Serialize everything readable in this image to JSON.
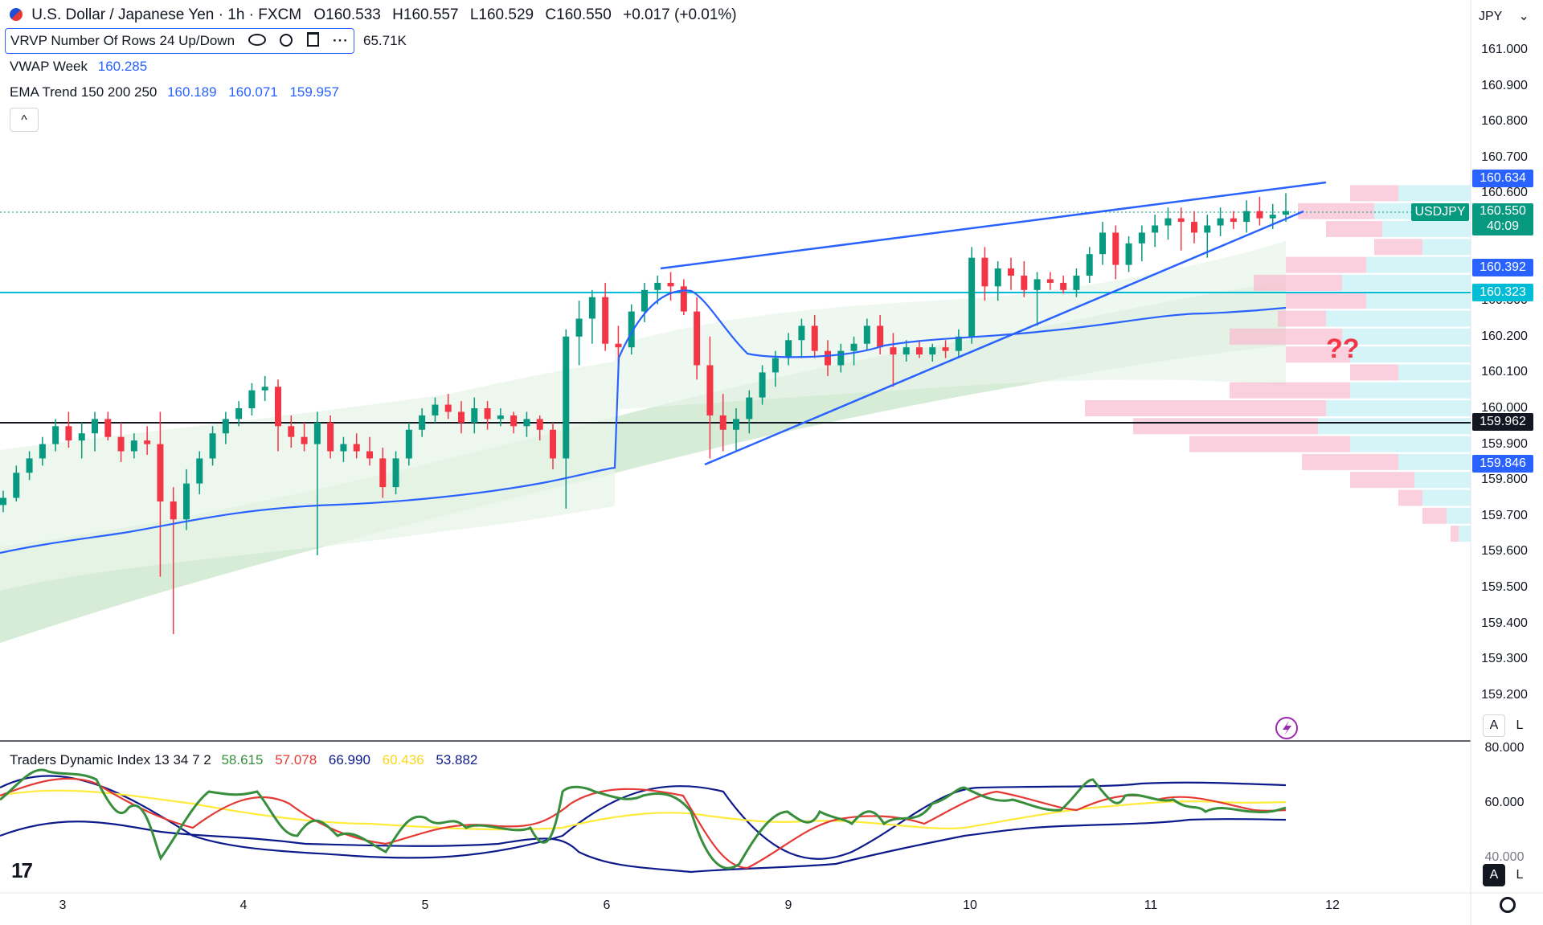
{
  "header": {
    "symbol_title": "U.S. Dollar / Japanese Yen · 1h · FXCM",
    "open_label": "O",
    "open": "160.533",
    "high_label": "H",
    "high": "160.557",
    "low_label": "L",
    "low": "160.529",
    "close_label": "C",
    "close": "160.550",
    "change": "+0.017 (+0.01%)"
  },
  "indicators": {
    "vrvp": {
      "label": "VRVP Number Of Rows 24 Up/Down",
      "volume": "65.71K"
    },
    "vwap": {
      "label": "VWAP Week",
      "value": "160.285",
      "color": "#2962ff"
    },
    "ema": {
      "label": "EMA Trend 150 200 250",
      "values": [
        "160.189",
        "160.071",
        "159.957"
      ],
      "color": "#2962ff"
    },
    "tdi": {
      "label": "Traders Dynamic Index 13 34 7 2",
      "values": [
        "58.615",
        "57.078",
        "66.990",
        "60.436",
        "53.882"
      ],
      "colors": [
        "#388e3c",
        "#e53935",
        "#0d1a8c",
        "#ffeb3b",
        "#0d1a8c"
      ]
    }
  },
  "currency": "JPY",
  "price_axis": [
    "161.000",
    "160.900",
    "160.800",
    "160.700",
    "160.600",
    "160.500",
    "160.400",
    "160.300",
    "160.200",
    "160.100",
    "160.000",
    "159.900",
    "159.800",
    "159.700",
    "159.600",
    "159.500",
    "159.400",
    "159.300",
    "159.200"
  ],
  "price_tags": [
    {
      "value": "160.634",
      "color": "#2962ff"
    },
    {
      "value": "160.550",
      "color": "#2962ff"
    },
    {
      "value": "160.392",
      "color": "#2962ff"
    },
    {
      "value": "160.323",
      "color": "#00bcd4"
    },
    {
      "value": "159.962",
      "color": "#131722"
    },
    {
      "value": "159.846",
      "color": "#2962ff"
    }
  ],
  "symbol_tag": {
    "symbol": "USDJPY",
    "price": "160.550",
    "countdown": "40:09",
    "color": "#089981"
  },
  "annotation": "??",
  "tdi_axis": [
    "80.000",
    "60.000",
    "40.000"
  ],
  "date_axis": [
    "3",
    "4",
    "5",
    "6",
    "9",
    "10",
    "11",
    "12"
  ],
  "buttons": {
    "auto": "A",
    "log": "L",
    "collapse": "^"
  },
  "colors": {
    "up": "#089981",
    "down": "#f23645",
    "trendline": "#2962ff",
    "support": "#00bcd4",
    "hline": "#131722"
  },
  "chart_data": {
    "type": "candlestick",
    "title": "U.S. Dollar / Japanese Yen · 1h · FXCM",
    "ylim": [
      159.15,
      161.1
    ],
    "candles_ohlc_approx": [
      [
        159.73,
        159.77,
        159.71,
        159.75
      ],
      [
        159.75,
        159.84,
        159.74,
        159.82
      ],
      [
        159.82,
        159.88,
        159.8,
        159.86
      ],
      [
        159.86,
        159.92,
        159.84,
        159.9
      ],
      [
        159.9,
        159.97,
        159.88,
        159.95
      ],
      [
        159.95,
        159.99,
        159.89,
        159.91
      ],
      [
        159.91,
        159.96,
        159.86,
        159.93
      ],
      [
        159.93,
        159.99,
        159.88,
        159.97
      ],
      [
        159.97,
        159.99,
        159.91,
        159.92
      ],
      [
        159.92,
        159.96,
        159.85,
        159.88
      ],
      [
        159.88,
        159.93,
        159.86,
        159.91
      ],
      [
        159.91,
        159.95,
        159.87,
        159.9
      ],
      [
        159.9,
        159.99,
        159.53,
        159.74
      ],
      [
        159.74,
        159.78,
        159.37,
        159.69
      ],
      [
        159.69,
        159.83,
        159.66,
        159.79
      ],
      [
        159.79,
        159.88,
        159.76,
        159.86
      ],
      [
        159.86,
        159.95,
        159.84,
        159.93
      ],
      [
        159.93,
        159.99,
        159.9,
        159.97
      ],
      [
        159.97,
        160.02,
        159.95,
        160.0
      ],
      [
        160.0,
        160.07,
        159.98,
        160.05
      ],
      [
        160.05,
        160.09,
        160.02,
        160.06
      ],
      [
        160.06,
        160.08,
        159.88,
        159.95
      ],
      [
        159.95,
        159.98,
        159.89,
        159.92
      ],
      [
        159.92,
        159.96,
        159.88,
        159.9
      ],
      [
        159.9,
        159.99,
        159.59,
        159.96
      ],
      [
        159.96,
        159.98,
        159.86,
        159.88
      ],
      [
        159.88,
        159.92,
        159.85,
        159.9
      ],
      [
        159.9,
        159.93,
        159.86,
        159.88
      ],
      [
        159.88,
        159.92,
        159.84,
        159.86
      ],
      [
        159.86,
        159.89,
        159.75,
        159.78
      ],
      [
        159.78,
        159.88,
        159.76,
        159.86
      ],
      [
        159.86,
        159.96,
        159.84,
        159.94
      ],
      [
        159.94,
        160.0,
        159.92,
        159.98
      ],
      [
        159.98,
        160.03,
        159.96,
        160.01
      ],
      [
        160.01,
        160.04,
        159.97,
        159.99
      ],
      [
        159.99,
        160.02,
        159.93,
        159.96
      ],
      [
        159.96,
        160.03,
        159.93,
        160.0
      ],
      [
        160.0,
        160.02,
        159.94,
        159.97
      ],
      [
        159.97,
        160.0,
        159.95,
        159.98
      ],
      [
        159.98,
        159.99,
        159.93,
        159.95
      ],
      [
        159.95,
        159.99,
        159.92,
        159.97
      ],
      [
        159.97,
        159.98,
        159.91,
        159.94
      ],
      [
        159.94,
        159.96,
        159.83,
        159.86
      ],
      [
        159.86,
        160.22,
        159.72,
        160.2
      ],
      [
        160.2,
        160.3,
        160.12,
        160.25
      ],
      [
        160.25,
        160.33,
        160.18,
        160.31
      ],
      [
        160.31,
        160.35,
        160.16,
        160.18
      ],
      [
        160.18,
        160.23,
        160.1,
        160.17
      ],
      [
        160.17,
        160.29,
        160.15,
        160.27
      ],
      [
        160.27,
        160.35,
        160.24,
        160.33
      ],
      [
        160.33,
        160.37,
        160.29,
        160.35
      ],
      [
        160.35,
        160.38,
        160.3,
        160.34
      ],
      [
        160.34,
        160.36,
        160.26,
        160.27
      ],
      [
        160.27,
        160.31,
        160.08,
        160.12
      ],
      [
        160.12,
        160.2,
        159.86,
        159.98
      ],
      [
        159.98,
        160.04,
        159.88,
        159.94
      ],
      [
        159.94,
        160.0,
        159.88,
        159.97
      ],
      [
        159.97,
        160.05,
        159.93,
        160.03
      ],
      [
        160.03,
        160.12,
        160.01,
        160.1
      ],
      [
        160.1,
        160.16,
        160.06,
        160.14
      ],
      [
        160.14,
        160.21,
        160.12,
        160.19
      ],
      [
        160.19,
        160.25,
        160.14,
        160.23
      ],
      [
        160.23,
        160.26,
        160.14,
        160.16
      ],
      [
        160.16,
        160.19,
        160.09,
        160.12
      ],
      [
        160.12,
        160.18,
        160.1,
        160.16
      ],
      [
        160.16,
        160.2,
        160.12,
        160.18
      ],
      [
        160.18,
        160.25,
        160.16,
        160.23
      ],
      [
        160.23,
        160.26,
        160.15,
        160.17
      ],
      [
        160.17,
        160.21,
        160.06,
        160.15
      ],
      [
        160.15,
        160.19,
        160.13,
        160.17
      ],
      [
        160.17,
        160.19,
        160.14,
        160.15
      ],
      [
        160.15,
        160.18,
        160.13,
        160.17
      ],
      [
        160.17,
        160.19,
        160.14,
        160.16
      ],
      [
        160.16,
        160.22,
        160.14,
        160.2
      ],
      [
        160.2,
        160.45,
        160.18,
        160.42
      ],
      [
        160.42,
        160.45,
        160.3,
        160.34
      ],
      [
        160.34,
        160.41,
        160.3,
        160.39
      ],
      [
        160.39,
        160.42,
        160.33,
        160.37
      ],
      [
        160.37,
        160.41,
        160.31,
        160.33
      ],
      [
        160.33,
        160.38,
        160.23,
        160.36
      ],
      [
        160.36,
        160.38,
        160.33,
        160.35
      ],
      [
        160.35,
        160.37,
        160.32,
        160.33
      ],
      [
        160.33,
        160.39,
        160.31,
        160.37
      ],
      [
        160.37,
        160.45,
        160.35,
        160.43
      ],
      [
        160.43,
        160.52,
        160.4,
        160.49
      ],
      [
        160.49,
        160.51,
        160.36,
        160.4
      ],
      [
        160.4,
        160.48,
        160.38,
        160.46
      ],
      [
        160.46,
        160.51,
        160.41,
        160.49
      ],
      [
        160.49,
        160.54,
        160.45,
        160.51
      ],
      [
        160.51,
        160.56,
        160.47,
        160.53
      ],
      [
        160.53,
        160.56,
        160.44,
        160.52
      ],
      [
        160.52,
        160.55,
        160.46,
        160.49
      ],
      [
        160.49,
        160.54,
        160.42,
        160.51
      ],
      [
        160.51,
        160.56,
        160.48,
        160.53
      ],
      [
        160.53,
        160.55,
        160.5,
        160.52
      ],
      [
        160.52,
        160.58,
        160.49,
        160.55
      ],
      [
        160.55,
        160.59,
        160.51,
        160.53
      ],
      [
        160.53,
        160.57,
        160.5,
        160.54
      ],
      [
        160.54,
        160.6,
        160.52,
        160.55
      ]
    ],
    "trendlines": [
      {
        "name": "upper",
        "from": [
          160.39,
          "6"
        ],
        "to": [
          160.634,
          "12"
        ]
      },
      {
        "name": "lower",
        "from": [
          159.846,
          "9"
        ],
        "to": [
          160.55,
          "12"
        ]
      }
    ],
    "horizontal_levels": [
      160.323,
      159.962
    ],
    "vwap_week_last": 160.285,
    "ema_last": [
      160.189,
      160.071,
      159.957
    ],
    "tdi_last": {
      "rsi": 58.615,
      "signal": 57.078,
      "upper_band": 66.99,
      "middle": 60.436,
      "lower_band": 53.882
    },
    "tdi_ylim": [
      38,
      82
    ]
  }
}
